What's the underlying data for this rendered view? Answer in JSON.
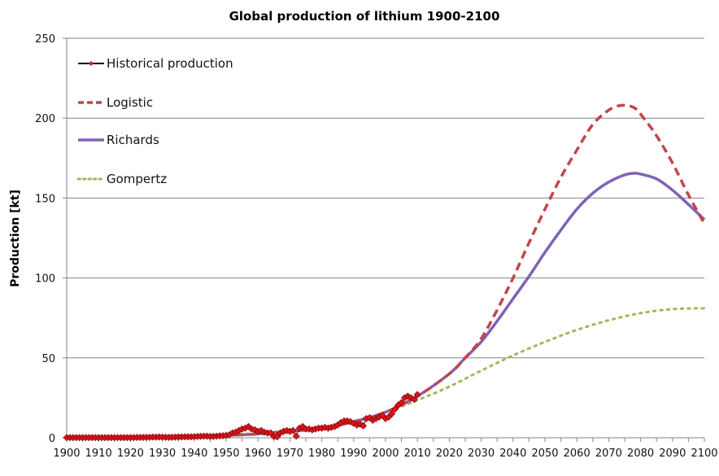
{
  "chart_data": {
    "type": "line",
    "title": "Global production of lithium 1900-2100",
    "xlabel": "",
    "ylabel": "Production  [kt]",
    "xlim": [
      1900,
      2100
    ],
    "ylim": [
      0,
      250
    ],
    "x_ticks": [
      1900,
      1910,
      1920,
      1930,
      1940,
      1950,
      1960,
      1970,
      1980,
      1990,
      2000,
      2010,
      2020,
      2030,
      2040,
      2050,
      2060,
      2070,
      2080,
      2090,
      2100
    ],
    "y_ticks": [
      0,
      50,
      100,
      150,
      200,
      250
    ],
    "grid": "horizontal",
    "legend_position": "top-left",
    "series": [
      {
        "name": "Historical production",
        "style": "line-with-diamond-markers",
        "color": "#000000",
        "marker_color": "#d9141b",
        "x": [
          1900,
          1901,
          1902,
          1903,
          1904,
          1905,
          1906,
          1907,
          1908,
          1909,
          1910,
          1911,
          1912,
          1913,
          1914,
          1915,
          1916,
          1917,
          1918,
          1919,
          1920,
          1921,
          1922,
          1923,
          1924,
          1925,
          1926,
          1927,
          1928,
          1929,
          1930,
          1931,
          1932,
          1933,
          1934,
          1935,
          1936,
          1937,
          1938,
          1939,
          1940,
          1941,
          1942,
          1943,
          1944,
          1945,
          1946,
          1947,
          1948,
          1949,
          1950,
          1951,
          1952,
          1953,
          1954,
          1955,
          1956,
          1957,
          1958,
          1959,
          1960,
          1961,
          1962,
          1963,
          1964,
          1965,
          1966,
          1967,
          1968,
          1969,
          1970,
          1971,
          1972,
          1973,
          1974,
          1975,
          1976,
          1977,
          1978,
          1979,
          1980,
          1981,
          1982,
          1983,
          1984,
          1985,
          1986,
          1987,
          1988,
          1989,
          1990,
          1991,
          1992,
          1993,
          1994,
          1995,
          1996,
          1997,
          1998,
          1999,
          2000,
          2001,
          2002,
          2003,
          2004,
          2005,
          2006,
          2007,
          2008,
          2009,
          2010
        ],
        "y": [
          0.1,
          0.1,
          0.1,
          0.1,
          0.1,
          0.1,
          0.1,
          0.1,
          0.1,
          0.1,
          0.1,
          0.1,
          0.1,
          0.1,
          0.1,
          0.1,
          0.1,
          0.1,
          0.1,
          0.1,
          0.1,
          0.1,
          0.2,
          0.2,
          0.2,
          0.3,
          0.3,
          0.4,
          0.4,
          0.5,
          0.4,
          0.3,
          0.2,
          0.3,
          0.4,
          0.5,
          0.5,
          0.6,
          0.6,
          0.6,
          0.7,
          0.8,
          0.9,
          1.0,
          1.0,
          0.8,
          0.8,
          1.0,
          1.2,
          1.3,
          1.5,
          1.8,
          3.0,
          3.5,
          4.5,
          5.5,
          6.0,
          7.0,
          5.5,
          5.0,
          4.0,
          4.5,
          3.5,
          3.0,
          3.0,
          0.8,
          0.6,
          3.0,
          4.0,
          4.5,
          4.0,
          4.5,
          1.0,
          6.0,
          7.0,
          5.5,
          5.5,
          5.0,
          5.5,
          6.0,
          6.0,
          6.5,
          6.0,
          6.5,
          7.0,
          8.0,
          9.5,
          10.5,
          10.5,
          10.0,
          9.0,
          8.0,
          8.5,
          7.5,
          12.0,
          12.5,
          11.0,
          12.0,
          13.0,
          14.0,
          12.0,
          13.0,
          15.0,
          18.0,
          20.5,
          22.0,
          25.0,
          26.0,
          25.0,
          24.0,
          27.0
        ]
      },
      {
        "name": "Logistic",
        "style": "dashed",
        "color": "#c0464b",
        "x": [
          1900,
          1950,
          1970,
          1980,
          1990,
          2000,
          2010,
          2020,
          2025,
          2030,
          2035,
          2040,
          2045,
          2050,
          2055,
          2060,
          2065,
          2070,
          2074,
          2078,
          2081,
          2085,
          2090,
          2095,
          2100
        ],
        "y": [
          0.1,
          1.5,
          4.0,
          6.0,
          10.0,
          16.0,
          26.0,
          40.0,
          50.0,
          62.0,
          80.0,
          100.0,
          122.0,
          143.0,
          163.0,
          180.0,
          196.0,
          205.0,
          208.0,
          206.5,
          200.0,
          189.0,
          172.0,
          152.0,
          134.0
        ]
      },
      {
        "name": "Richards",
        "style": "solid",
        "color": "#7f63b4",
        "x": [
          1900,
          1950,
          1970,
          1980,
          1990,
          2000,
          2010,
          2020,
          2025,
          2030,
          2035,
          2040,
          2045,
          2050,
          2055,
          2060,
          2065,
          2070,
          2075,
          2078,
          2080,
          2085,
          2090,
          2095,
          2100
        ],
        "y": [
          0.1,
          1.5,
          4.0,
          6.0,
          10.0,
          16.0,
          26.0,
          40.0,
          50.0,
          60.0,
          73.0,
          87.0,
          101.0,
          116.0,
          130.0,
          143.0,
          153.0,
          160.0,
          164.5,
          165.5,
          165.0,
          162.0,
          155.0,
          146.0,
          136.5
        ]
      },
      {
        "name": "Gompertz",
        "style": "dotted",
        "color": "#9bbb59",
        "x": [
          1900,
          1950,
          1970,
          1980,
          1990,
          2000,
          2010,
          2020,
          2030,
          2040,
          2050,
          2060,
          2070,
          2080,
          2090,
          2100
        ],
        "y": [
          0.1,
          2.0,
          4.5,
          6.5,
          10.5,
          16.0,
          23.5,
          32.0,
          42.0,
          51.5,
          60.0,
          67.5,
          73.5,
          78.0,
          80.5,
          81.0
        ]
      }
    ]
  }
}
